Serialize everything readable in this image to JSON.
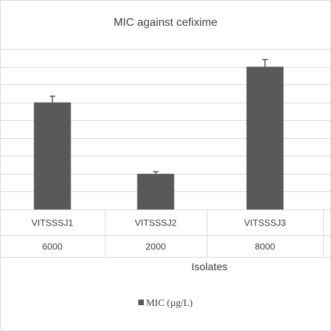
{
  "chart_data": {
    "type": "bar",
    "title": "MIC against cefixime",
    "xlabel": "Isolates",
    "ylabel": "",
    "categories": [
      "VITSSSJ1",
      "VITSSSJ2",
      "VITSSSJ3"
    ],
    "series": [
      {
        "name": "MIC (µg/L)",
        "values": [
          6000,
          2000,
          8000
        ],
        "error": [
          350,
          120,
          400
        ],
        "color": "#595959"
      }
    ],
    "table_values": [
      "6000",
      "2000",
      "8000"
    ],
    "ylim": [
      0,
      9000
    ],
    "grid": true,
    "legend_position": "bottom"
  }
}
